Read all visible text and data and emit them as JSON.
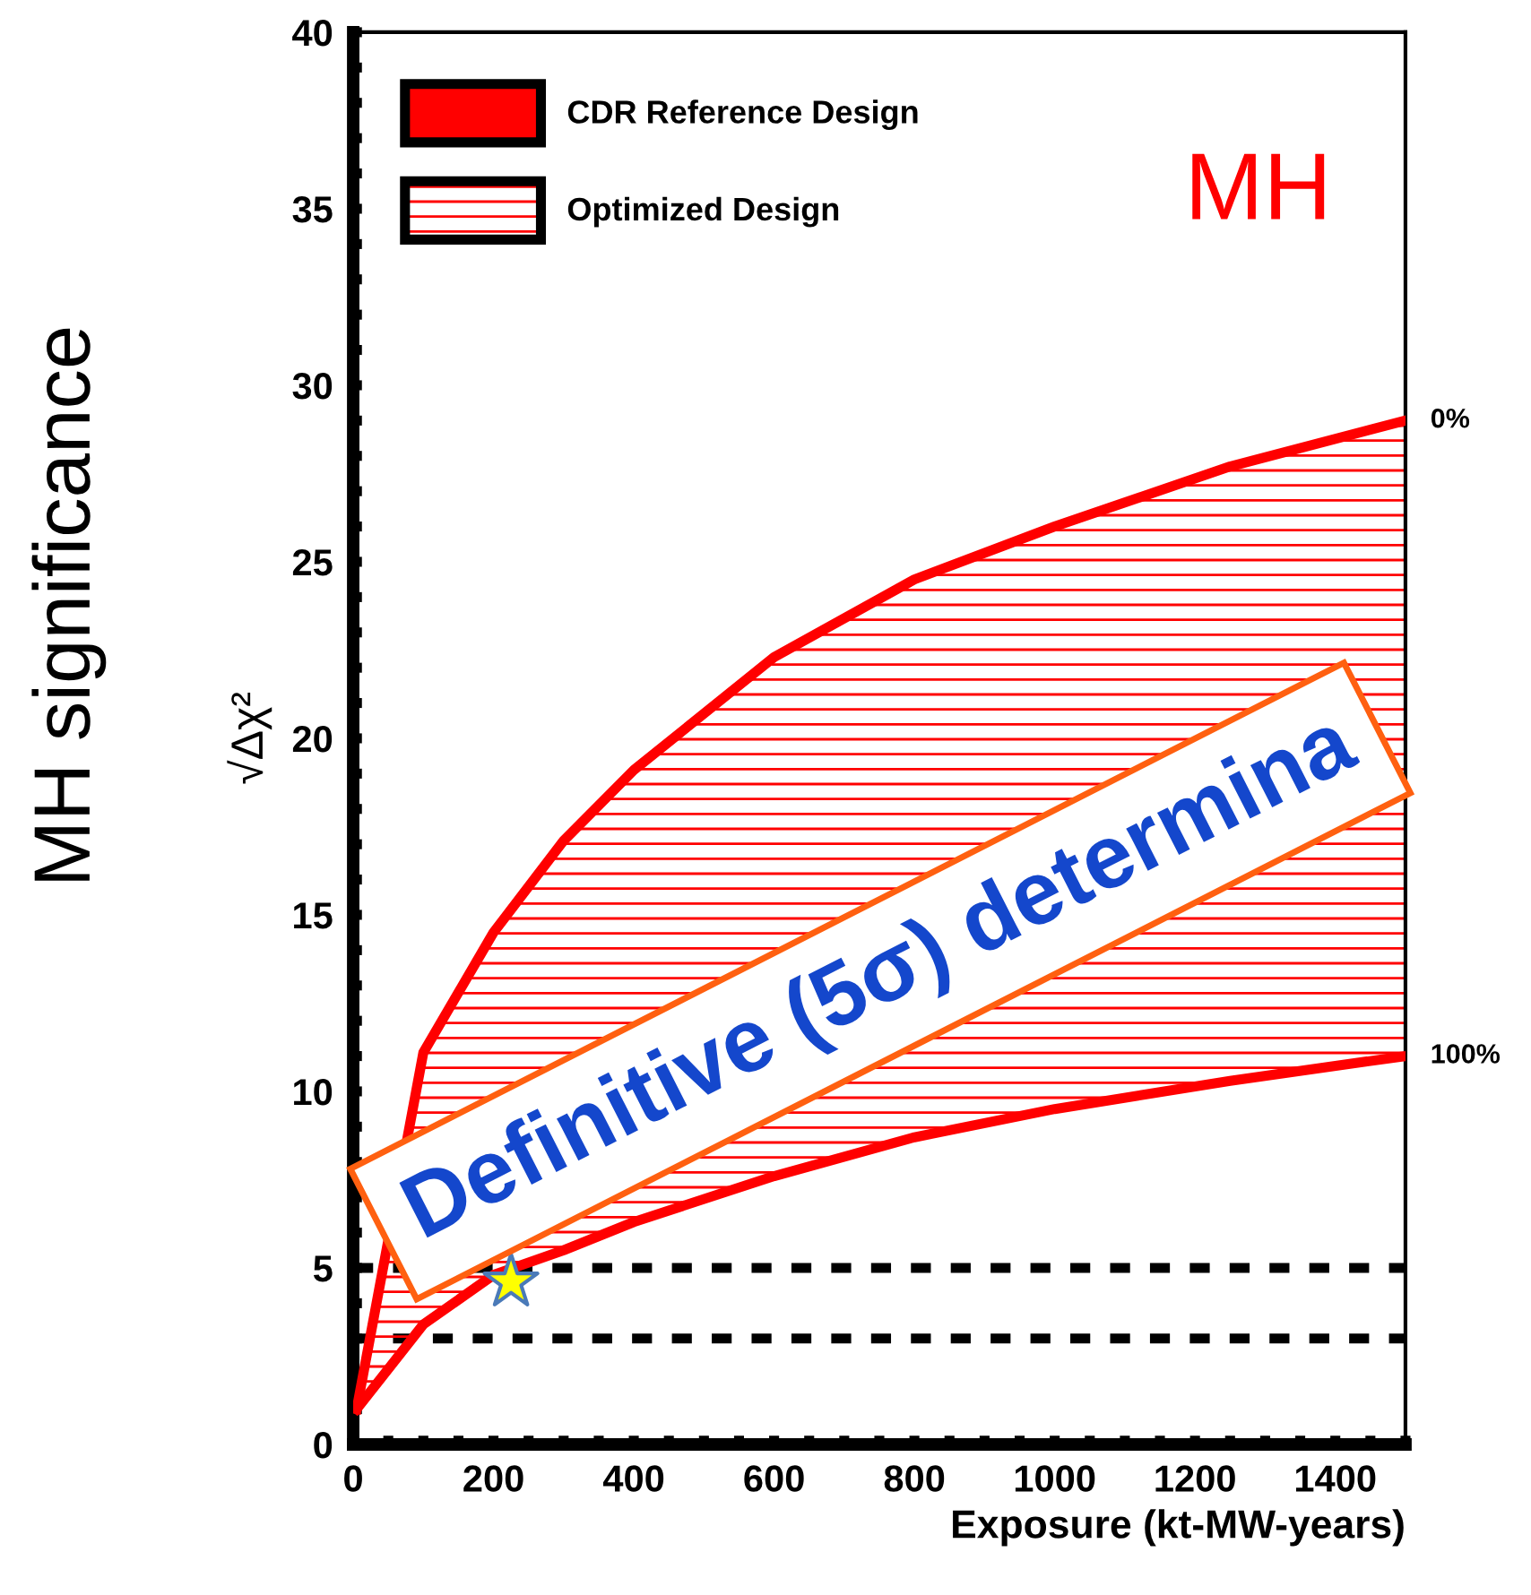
{
  "chart_data": {
    "type": "area",
    "xlabel": "Exposure (kt-MW-years)",
    "ylabel": "√Δχ²",
    "xlim": [
      0,
      1500
    ],
    "ylim": [
      0,
      40
    ],
    "xticks": [
      0,
      {
        "value": 50,
        "label": null
      },
      {
        "value": 100,
        "label": null
      },
      {
        "value": 150,
        "label": null
      },
      200,
      {
        "value": 250,
        "label": null
      },
      {
        "value": 300,
        "label": null
      },
      {
        "value": 350,
        "label": null
      },
      400,
      {
        "value": 450,
        "label": null
      },
      {
        "value": 500,
        "label": null
      },
      {
        "value": 550,
        "label": null
      },
      600,
      {
        "value": 650,
        "label": null
      },
      {
        "value": 700,
        "label": null
      },
      {
        "value": 750,
        "label": null
      },
      800,
      {
        "value": 850,
        "label": null
      },
      {
        "value": 900,
        "label": null
      },
      {
        "value": 950,
        "label": null
      },
      1000,
      {
        "value": 1050,
        "label": null
      },
      {
        "value": 1100,
        "label": null
      },
      {
        "value": 1150,
        "label": null
      },
      1200,
      {
        "value": 1250,
        "label": null
      },
      {
        "value": 1300,
        "label": null
      },
      {
        "value": 1350,
        "label": null
      },
      1400,
      {
        "value": 1450,
        "label": null
      },
      {
        "value": 1500,
        "label": null
      }
    ],
    "yticks": [
      0,
      {
        "value": 1,
        "label": null
      },
      {
        "value": 2,
        "label": null
      },
      {
        "value": 3,
        "label": null
      },
      {
        "value": 4,
        "label": null
      },
      5,
      {
        "value": 6,
        "label": null
      },
      {
        "value": 7,
        "label": null
      },
      {
        "value": 8,
        "label": null
      },
      {
        "value": 9,
        "label": null
      },
      10,
      {
        "value": 11,
        "label": null
      },
      {
        "value": 12,
        "label": null
      },
      {
        "value": 13,
        "label": null
      },
      {
        "value": 14,
        "label": null
      },
      15,
      {
        "value": 16,
        "label": null
      },
      {
        "value": 17,
        "label": null
      },
      {
        "value": 18,
        "label": null
      },
      {
        "value": 19,
        "label": null
      },
      20,
      {
        "value": 21,
        "label": null
      },
      {
        "value": 22,
        "label": null
      },
      {
        "value": 23,
        "label": null
      },
      {
        "value": 24,
        "label": null
      },
      25,
      {
        "value": 26,
        "label": null
      },
      {
        "value": 27,
        "label": null
      },
      {
        "value": 28,
        "label": null
      },
      {
        "value": 29,
        "label": null
      },
      30,
      {
        "value": 31,
        "label": null
      },
      {
        "value": 32,
        "label": null
      },
      {
        "value": 33,
        "label": null
      },
      {
        "value": 34,
        "label": null
      },
      35,
      {
        "value": 36,
        "label": null
      },
      {
        "value": 37,
        "label": null
      },
      {
        "value": 38,
        "label": null
      },
      {
        "value": 39,
        "label": null
      },
      40
    ],
    "x": [
      5,
      100,
      200,
      300,
      400,
      600,
      800,
      1000,
      1250,
      1500
    ],
    "series": [
      {
        "name": "CDR Reference Design",
        "color": "#ff0000",
        "values": [
          null,
          null,
          null,
          null,
          null,
          null,
          null,
          null,
          null,
          null
        ]
      },
      {
        "name": "100%",
        "type": "line",
        "color": "#ff0000",
        "values": [
          1.0,
          3.4,
          4.8,
          5.5,
          6.3,
          7.6,
          8.7,
          9.5,
          10.3,
          11.0
        ]
      },
      {
        "name": "Optimized Design",
        "color": "#ff0000",
        "values": [
          1.0,
          11.1,
          14.5,
          17.1,
          19.1,
          22.3,
          24.5,
          26.0,
          27.7,
          29.0
        ]
      },
      {
        "type": "scatter",
        "color": "#ffff00",
        "marker": "star",
        "x": [
          225
        ],
        "values": [
          4.6
        ]
      }
    ],
    "ref_lines": [
      {
        "axis": "y",
        "value": 5,
        "color": "#000000",
        "line_style": "dashed"
      },
      {
        "axis": "y",
        "value": 3,
        "color": "#000000",
        "line_style": "dashed"
      }
    ],
    "annotations": [
      {
        "text": "0%",
        "x": 1500,
        "y": 29.0
      },
      "MH",
      "MH significance",
      "Definitive (5σ) determina"
    ],
    "legend": "top left",
    "grid": false
  }
}
